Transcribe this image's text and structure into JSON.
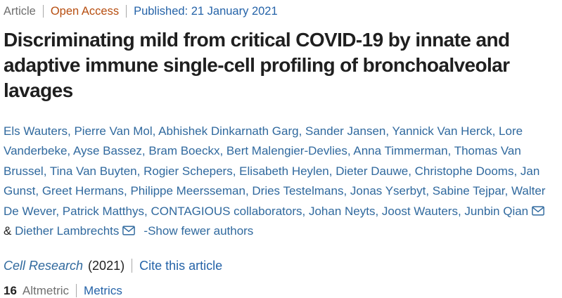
{
  "meta": {
    "article_label": "Article",
    "access_label": "Open Access",
    "published_label": "Published: 21 January 2021"
  },
  "title": {
    "text": "Discriminating mild from critical COVID-19 by innate and adaptive immune single-cell profiling of bronchoalveolar lavages"
  },
  "authors": {
    "list": [
      {
        "name": "Els Wauters"
      },
      {
        "name": "Pierre Van Mol"
      },
      {
        "name": "Abhishek Dinkarnath Garg"
      },
      {
        "name": "Sander Jansen"
      },
      {
        "name": "Yannick Van Herck"
      },
      {
        "name": "Lore Vanderbeke"
      },
      {
        "name": "Ayse Bassez"
      },
      {
        "name": "Bram Boeckx"
      },
      {
        "name": "Bert Malengier-Devlies"
      },
      {
        "name": "Anna Timmerman"
      },
      {
        "name": "Thomas Van Brussel"
      },
      {
        "name": "Tina Van Buyten"
      },
      {
        "name": "Rogier Schepers"
      },
      {
        "name": "Elisabeth Heylen"
      },
      {
        "name": "Dieter Dauwe"
      },
      {
        "name": "Christophe Dooms"
      },
      {
        "name": "Jan Gunst"
      },
      {
        "name": "Greet Hermans"
      },
      {
        "name": "Philippe Meersseman"
      },
      {
        "name": "Dries Testelmans"
      },
      {
        "name": "Jonas Yserbyt"
      },
      {
        "name": "Sabine Tejpar"
      },
      {
        "name": "Walter De Wever"
      },
      {
        "name": "Patrick Matthys"
      },
      {
        "name": "CONTAGIOUS collaborators"
      },
      {
        "name": "Johan Neyts"
      },
      {
        "name": "Joost Wauters"
      },
      {
        "name": "Junbin Qian",
        "email": true
      },
      {
        "name": "Diether Lambrechts",
        "email": true
      }
    ],
    "separator": ", ",
    "ampersand": "&",
    "show_fewer_label": "-Show fewer authors",
    "email_icon": "envelope-icon"
  },
  "journal": {
    "name": "Cell Research",
    "year": "(2021)",
    "cite_label": "Cite this article"
  },
  "metrics": {
    "altmetric_value": "16",
    "altmetric_label": "Altmetric",
    "metrics_label": "Metrics"
  },
  "colors": {
    "link_blue": "#30699e",
    "published_blue": "#2563a8",
    "open_access_orange": "#b74e10",
    "meta_gray": "#6f6f6f",
    "title_dark": "#1f1f1f",
    "divider_gray": "#a8a8a8"
  }
}
